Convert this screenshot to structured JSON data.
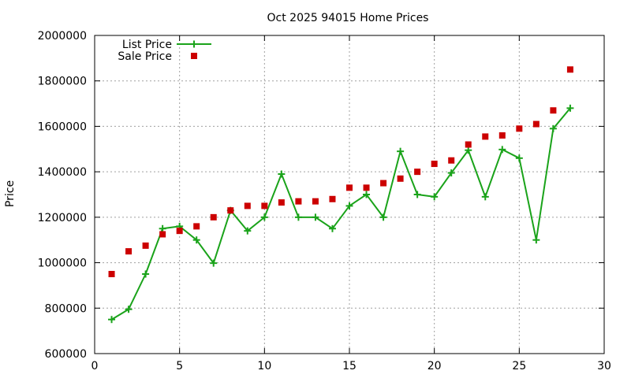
{
  "chart_data": {
    "type": "line",
    "title": "Oct 2025 94015 Home Prices",
    "xlabel": "",
    "ylabel": "Price",
    "xlim": [
      0,
      30
    ],
    "ylim": [
      600000,
      2000000
    ],
    "x_ticks": [
      0,
      5,
      10,
      15,
      20,
      25,
      30
    ],
    "y_ticks": [
      600000,
      800000,
      1000000,
      1200000,
      1400000,
      1600000,
      1800000,
      2000000
    ],
    "grid": true,
    "legend_position": "top-left",
    "series": [
      {
        "name": "List Price",
        "style": "line-with-plus-markers",
        "color": "#1aa31a",
        "points": [
          {
            "x": 1,
            "y": 750000
          },
          {
            "x": 2,
            "y": 795000
          },
          {
            "x": 3,
            "y": 950000
          },
          {
            "x": 4,
            "y": 1150000
          },
          {
            "x": 5,
            "y": 1160000
          },
          {
            "x": 6,
            "y": 1100000
          },
          {
            "x": 7,
            "y": 998000
          },
          {
            "x": 8,
            "y": 1230000
          },
          {
            "x": 9,
            "y": 1140000
          },
          {
            "x": 10,
            "y": 1200000
          },
          {
            "x": 11,
            "y": 1390000
          },
          {
            "x": 12,
            "y": 1200000
          },
          {
            "x": 13,
            "y": 1200000
          },
          {
            "x": 14,
            "y": 1150000
          },
          {
            "x": 15,
            "y": 1250000
          },
          {
            "x": 16,
            "y": 1300000
          },
          {
            "x": 17,
            "y": 1200000
          },
          {
            "x": 18,
            "y": 1490000
          },
          {
            "x": 19,
            "y": 1300000
          },
          {
            "x": 20,
            "y": 1290000
          },
          {
            "x": 21,
            "y": 1395000
          },
          {
            "x": 22,
            "y": 1495000
          },
          {
            "x": 23,
            "y": 1290000
          },
          {
            "x": 24,
            "y": 1498000
          },
          {
            "x": 25,
            "y": 1460000
          },
          {
            "x": 26,
            "y": 1100000
          },
          {
            "x": 27,
            "y": 1590000
          },
          {
            "x": 28,
            "y": 1680000
          }
        ]
      },
      {
        "name": "Sale Price",
        "style": "square-markers",
        "color": "#cc0000",
        "points": [
          {
            "x": 1,
            "y": 950000
          },
          {
            "x": 2,
            "y": 1050000
          },
          {
            "x": 3,
            "y": 1075000
          },
          {
            "x": 4,
            "y": 1125000
          },
          {
            "x": 5,
            "y": 1140000
          },
          {
            "x": 6,
            "y": 1160000
          },
          {
            "x": 7,
            "y": 1200000
          },
          {
            "x": 8,
            "y": 1230000
          },
          {
            "x": 9,
            "y": 1250000
          },
          {
            "x": 10,
            "y": 1250000
          },
          {
            "x": 11,
            "y": 1265000
          },
          {
            "x": 12,
            "y": 1270000
          },
          {
            "x": 13,
            "y": 1270000
          },
          {
            "x": 14,
            "y": 1280000
          },
          {
            "x": 15,
            "y": 1330000
          },
          {
            "x": 16,
            "y": 1330000
          },
          {
            "x": 17,
            "y": 1350000
          },
          {
            "x": 18,
            "y": 1370000
          },
          {
            "x": 19,
            "y": 1400000
          },
          {
            "x": 20,
            "y": 1435000
          },
          {
            "x": 21,
            "y": 1450000
          },
          {
            "x": 22,
            "y": 1520000
          },
          {
            "x": 23,
            "y": 1555000
          },
          {
            "x": 24,
            "y": 1560000
          },
          {
            "x": 25,
            "y": 1590000
          },
          {
            "x": 26,
            "y": 1610000
          },
          {
            "x": 27,
            "y": 1670000
          },
          {
            "x": 28,
            "y": 1850000
          }
        ]
      }
    ]
  }
}
